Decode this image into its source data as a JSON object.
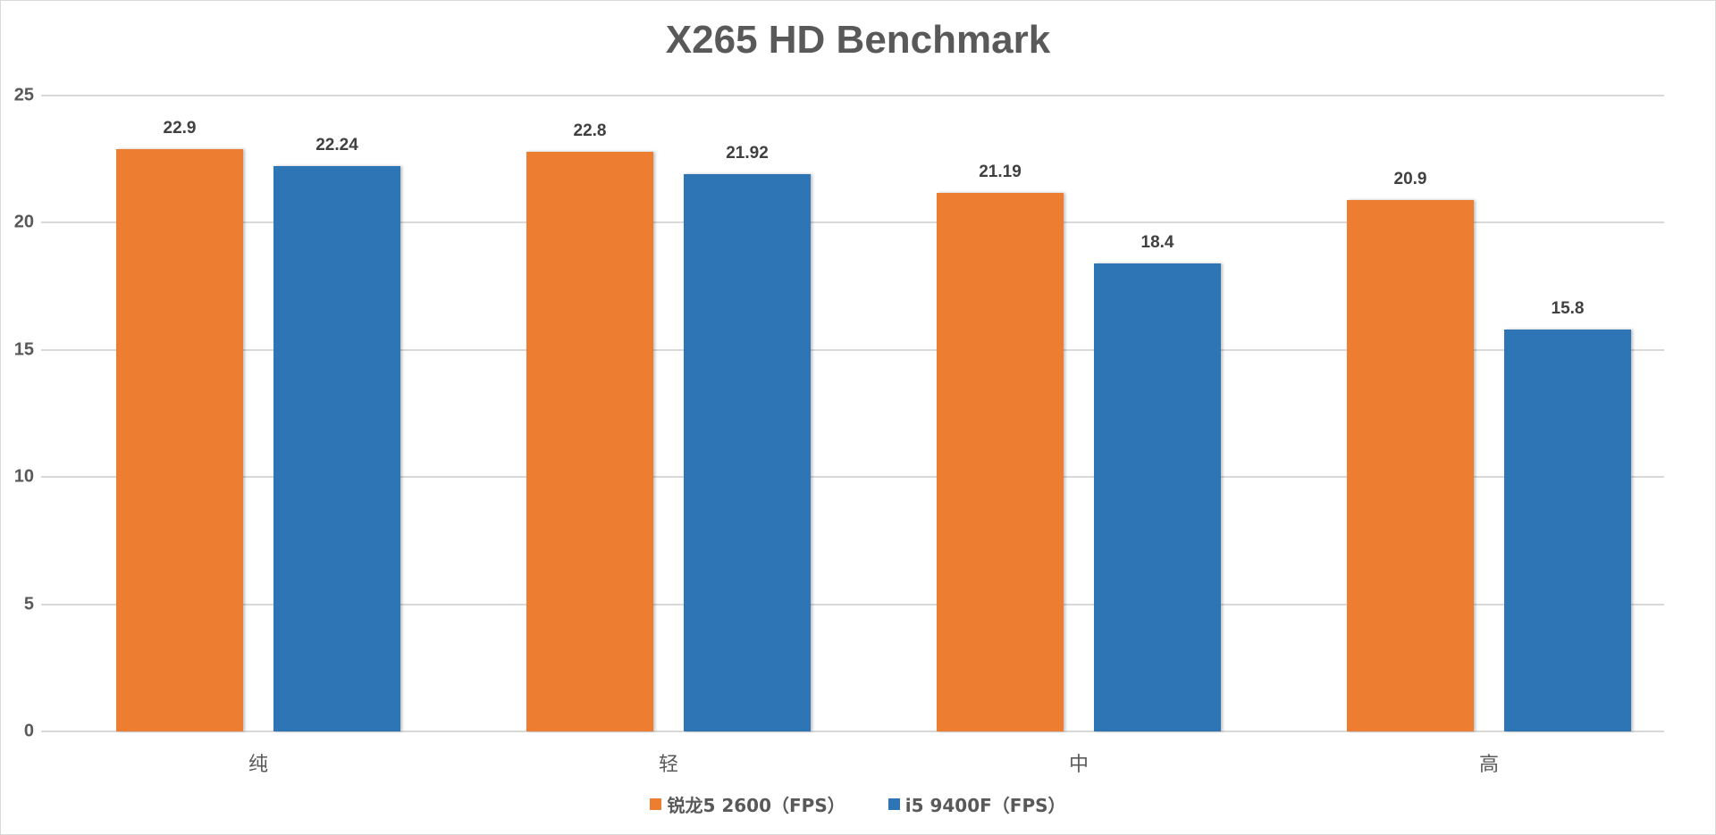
{
  "chart_data": {
    "type": "bar",
    "title": "X265 HD Benchmark",
    "xlabel": "",
    "ylabel": "",
    "ylim": [
      0,
      25
    ],
    "yticks": [
      "0",
      "5",
      "10",
      "15",
      "20",
      "25"
    ],
    "grid": true,
    "legend_position": "bottom",
    "categories": [
      "纯",
      "轻",
      "中",
      "高"
    ],
    "series": [
      {
        "name": "锐龙5 2600（FPS）",
        "color": "#ED7D31",
        "values": [
          22.9,
          22.8,
          21.19,
          20.9
        ],
        "labels": [
          "22.9",
          "22.8",
          "21.19",
          "20.9"
        ]
      },
      {
        "name": "i5 9400F（FPS）",
        "color": "#2E75B6",
        "values": [
          22.24,
          21.92,
          18.4,
          15.8
        ],
        "labels": [
          "22.24",
          "21.92",
          "18.4",
          "15.8"
        ]
      }
    ]
  }
}
